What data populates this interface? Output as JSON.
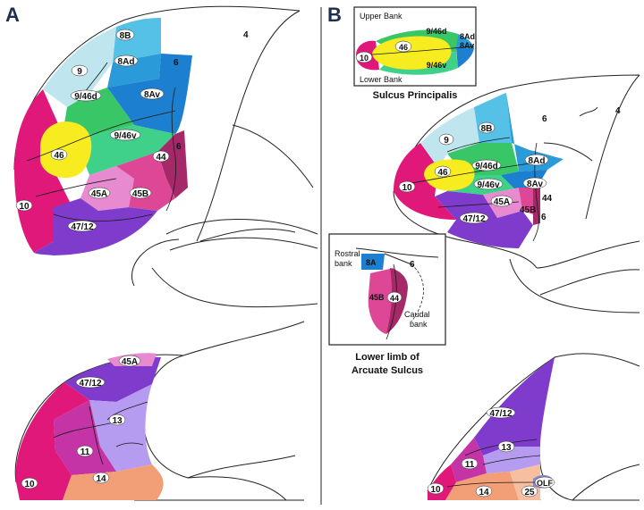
{
  "panels": {
    "a": {
      "letter": "A"
    },
    "b": {
      "letter": "B"
    }
  },
  "colors": {
    "area_10": "#e0187a",
    "area_9": "#bfe6ee",
    "area_8B": "#55c1e6",
    "area_8Ad": "#2a9ad8",
    "area_8Av": "#1c7fd0",
    "area_9_46d": "#38c667",
    "area_9_46v": "#3fd08a",
    "area_46": "#f6ec1f",
    "area_45A": "#e88ad0",
    "area_45B": "#de4696",
    "area_44": "#a52968",
    "area_47_12": "#7f3ccc",
    "area_13": "#b69cf0",
    "area_11": "#c534a6",
    "area_14": "#f29e76",
    "area_25": "#f7bfa0",
    "area_OLF": "#8b86c7"
  },
  "labels_a_lateral": {
    "l10": "10",
    "l9": "9",
    "l8B": "8B",
    "l8Ad": "8Ad",
    "l8Av": "8Av",
    "l946d": "9/46d",
    "l946v": "9/46v",
    "l46": "46",
    "l44": "44",
    "l45A": "45A",
    "l45B": "45B",
    "l4712": "47/12",
    "l4": "4",
    "l6a": "6",
    "l6b": "6"
  },
  "labels_a_orbital": {
    "l45A": "45A",
    "l4712": "47/12",
    "l13": "13",
    "l11": "11",
    "l10": "10",
    "l14": "14"
  },
  "inset_principalis": {
    "upper": "Upper Bank",
    "lower": "Lower Bank",
    "l946d": "9/46d",
    "l946v": "9/46v",
    "l46": "46",
    "l10": "10",
    "l8Ad": "8Ad",
    "l8Av": "8Av",
    "caption": "Sulcus Principalis"
  },
  "labels_b_lateral": {
    "l8B": "8B",
    "l9": "9",
    "l6a": "6",
    "l4": "4",
    "l8Ad": "8Ad",
    "l946d": "9/46d",
    "l46": "46",
    "l10": "10",
    "l946v": "9/46v",
    "l8Av": "8Av",
    "l44": "44",
    "l45A": "45A",
    "l45B": "45B",
    "l4712": "47/12",
    "l6b": "6"
  },
  "inset_arcuate": {
    "rostral": "Rostral",
    "rostral2": "bank",
    "caudal": "Caudal",
    "caudal2": "bank",
    "l8A": "8A",
    "l6": "6",
    "l45B": "45B",
    "l44": "44",
    "caption1": "Lower limb of",
    "caption2": "Arcuate Sulcus"
  },
  "labels_b_orbital": {
    "l4712": "47/12",
    "l13": "13",
    "l11": "11",
    "l10": "10",
    "l14": "14",
    "l25": "25",
    "lOLF": "OLF"
  }
}
